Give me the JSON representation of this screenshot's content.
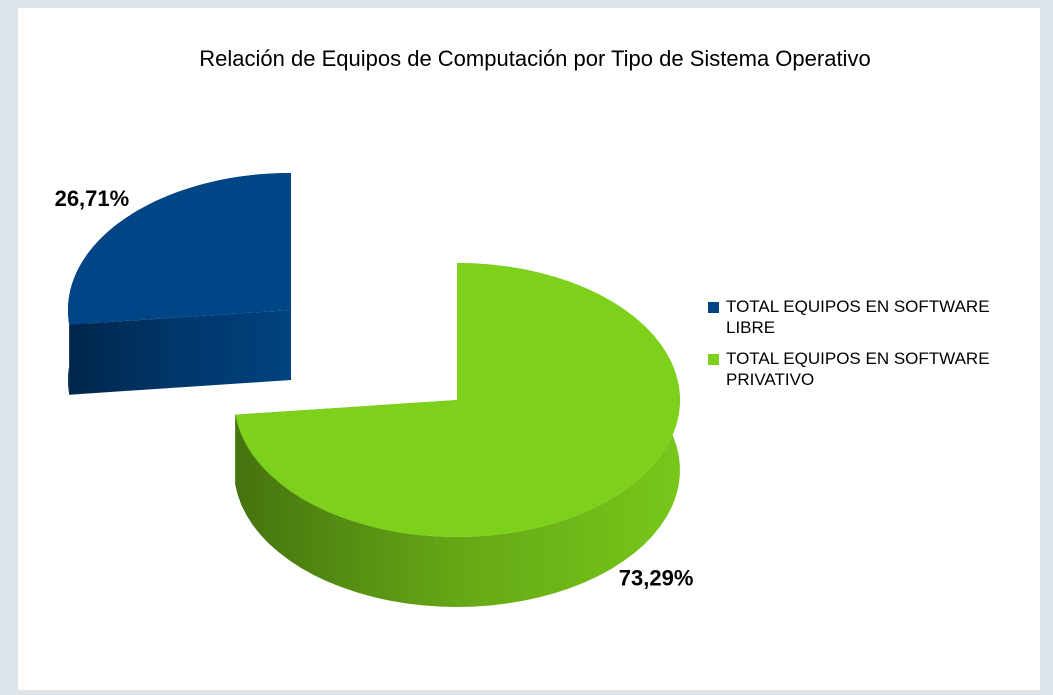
{
  "chart_data": {
    "type": "pie",
    "title": "Relación de Equipos de Computación por Tipo de Sistema Operativo",
    "categories": [
      "TOTAL EQUIPOS EN SOFTWARE LIBRE",
      "TOTAL EQUIPOS EN SOFTWARE PRIVATIVO"
    ],
    "values": [
      26.71,
      73.29
    ],
    "value_labels": [
      "26,71%",
      "73,29%"
    ],
    "colors": [
      "#004586",
      "#7ed11b"
    ],
    "legend": "right"
  }
}
